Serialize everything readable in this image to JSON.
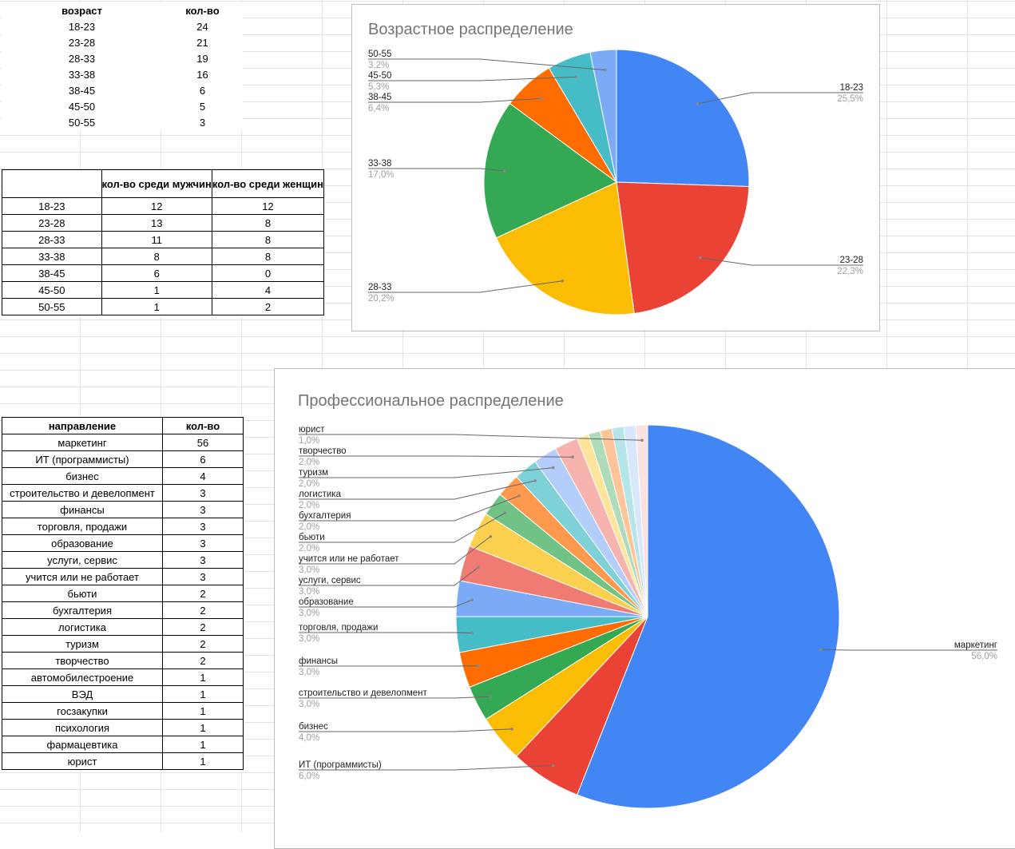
{
  "age_table": {
    "headers": [
      "возраст",
      "кол-во"
    ],
    "rows": [
      [
        "18-23",
        "24"
      ],
      [
        "23-28",
        "21"
      ],
      [
        "28-33",
        "19"
      ],
      [
        "33-38",
        "16"
      ],
      [
        "38-45",
        "6"
      ],
      [
        "45-50",
        "5"
      ],
      [
        "50-55",
        "3"
      ]
    ]
  },
  "gender_table": {
    "headers": [
      "",
      "кол-во среди мужчин",
      "кол-во среди женщин"
    ],
    "rows": [
      [
        "18-23",
        "12",
        "12"
      ],
      [
        "23-28",
        "13",
        "8"
      ],
      [
        "28-33",
        "11",
        "8"
      ],
      [
        "33-38",
        "8",
        "8"
      ],
      [
        "38-45",
        "6",
        "0"
      ],
      [
        "45-50",
        "1",
        "4"
      ],
      [
        "50-55",
        "1",
        "2"
      ]
    ]
  },
  "prof_table": {
    "headers": [
      "направление",
      "кол-во"
    ],
    "rows": [
      [
        "маркетинг",
        "56"
      ],
      [
        "ИТ (программисты)",
        "6"
      ],
      [
        "бизнес",
        "4"
      ],
      [
        "строительство и девелопмент",
        "3"
      ],
      [
        "финансы",
        "3"
      ],
      [
        "торговля, продажи",
        "3"
      ],
      [
        "образование",
        "3"
      ],
      [
        "услуги, сервис",
        "3"
      ],
      [
        "учится или не работает",
        "3"
      ],
      [
        "бьюти",
        "2"
      ],
      [
        "бухгалтерия",
        "2"
      ],
      [
        "логистика",
        "2"
      ],
      [
        "туризм",
        "2"
      ],
      [
        "творчество",
        "2"
      ],
      [
        "автомобилестроение",
        "1"
      ],
      [
        "ВЭД",
        "1"
      ],
      [
        "госзакупки",
        "1"
      ],
      [
        "психология",
        "1"
      ],
      [
        "фармацевтика",
        "1"
      ],
      [
        "юрист",
        "1"
      ]
    ]
  },
  "chart_data": [
    {
      "type": "pie",
      "title": "Возрастное распределение",
      "categories": [
        "18-23",
        "23-28",
        "28-33",
        "33-38",
        "38-45",
        "45-50",
        "50-55"
      ],
      "values": [
        24,
        21,
        19,
        16,
        6,
        5,
        3
      ],
      "percent_labels": [
        "25,5%",
        "22,3%",
        "20,2%",
        "17,0%",
        "6,4%",
        "5,3%",
        "3,2%"
      ],
      "colors": [
        "#4285f4",
        "#ea4335",
        "#fbbc04",
        "#34a853",
        "#ff6d01",
        "#46bdc6",
        "#7baaf7"
      ]
    },
    {
      "type": "pie",
      "title": "Профессиональное распределение",
      "categories": [
        "маркетинг",
        "ИТ (программисты)",
        "бизнес",
        "строительство и девелопмент",
        "финансы",
        "торговля, продажи",
        "образование",
        "услуги, сервис",
        "учится или не работает",
        "бьюти",
        "бухгалтерия",
        "логистика",
        "туризм",
        "творчество",
        "автомобилестроение",
        "ВЭД",
        "госзакупки",
        "психология",
        "фармацевтика",
        "юрист"
      ],
      "values": [
        56,
        6,
        4,
        3,
        3,
        3,
        3,
        3,
        3,
        2,
        2,
        2,
        2,
        2,
        1,
        1,
        1,
        1,
        1,
        1
      ],
      "percent_labels": [
        "56,0%",
        "6,0%",
        "4,0%",
        "3,0%",
        "3,0%",
        "3,0%",
        "3,0%",
        "3,0%",
        "3,0%",
        "2,0%",
        "2,0%",
        "2,0%",
        "2,0%",
        "2,0%",
        "",
        "",
        "",
        "",
        "",
        "1,0%"
      ],
      "labeled": [
        "маркетинг",
        "ИТ (программисты)",
        "бизнес",
        "строительство и девелопмент",
        "финансы",
        "торговля, продажи",
        "образование",
        "услуги, сервис",
        "учится или не работает",
        "бьюти",
        "бухгалтерия",
        "логистика",
        "туризм",
        "творчество",
        "юрист"
      ],
      "colors": [
        "#4285f4",
        "#ea4335",
        "#fbbc04",
        "#34a853",
        "#ff6d01",
        "#46bdc6",
        "#7baaf7",
        "#f07b72",
        "#fcd04f",
        "#71c287",
        "#ff994d",
        "#7ed1d7",
        "#b3cefb",
        "#f7b4ae",
        "#fde49b",
        "#aedcba",
        "#ffc599",
        "#b5e5e8",
        "#d9e7fd",
        "#fbe1df"
      ]
    }
  ]
}
